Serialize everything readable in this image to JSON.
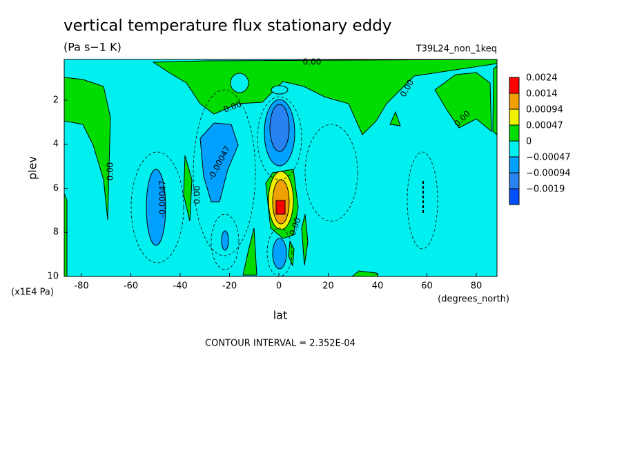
{
  "chart_data": {
    "type": "contour",
    "title": "vertical temperature flux stationary eddy",
    "subtitle": "(Pa s−1 K)",
    "run_label": "T39L24_non_1keq",
    "x_label": "lat",
    "x_units": "(degrees_north)",
    "y_label": "plev",
    "y_units": "(x1E4 Pa)",
    "footer": "CONTOUR INTERVAL = 2.352E-04",
    "xlim": [
      -87,
      88.4
    ],
    "ylim": [
      10,
      0.15
    ],
    "xticks": [
      -80,
      -60,
      -40,
      -20,
      0,
      20,
      40,
      60,
      80
    ],
    "yticks": [
      2,
      4,
      6,
      8,
      10
    ],
    "levels": [
      {
        "value": 0.0024,
        "label": "0.0024",
        "color": "#ff0000"
      },
      {
        "value": 0.0014,
        "label": "0.0014",
        "color": "#f0a000"
      },
      {
        "value": 0.00094,
        "label": "0.00094",
        "color": "#f0f000"
      },
      {
        "value": 0.00047,
        "label": "0.00047",
        "color": "#00dc00"
      },
      {
        "value": 0,
        "label": "0",
        "color": "#00f0f0"
      },
      {
        "value": -0.00047,
        "label": "−0.00047",
        "color": "#00a0ff"
      },
      {
        "value": -0.00094,
        "label": "−0.00094",
        "color": "#2882f0"
      },
      {
        "value": -0.0019,
        "label": "−0.0019",
        "color": "#0050ff"
      }
    ],
    "contour_labels": [
      "0.00",
      "-0.00047"
    ]
  }
}
